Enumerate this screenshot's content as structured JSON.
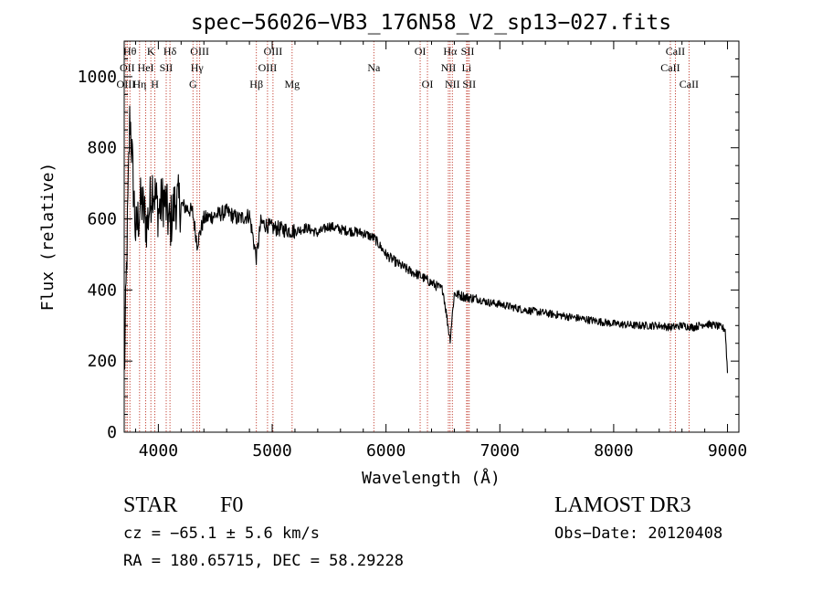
{
  "chart_data": {
    "type": "line",
    "title": "spec−56026−VB3_176N58_V2_sp13−027.fits",
    "xlabel": "Wavelength (Å)",
    "ylabel": "Flux (relative)",
    "xlim": [
      3700,
      9100
    ],
    "ylim": [
      0,
      1100
    ],
    "xticks": [
      4000,
      5000,
      6000,
      7000,
      8000,
      9000
    ],
    "yticks": [
      0,
      200,
      400,
      600,
      800,
      1000
    ],
    "x": [
      3700,
      3750,
      3800,
      3850,
      3900,
      3950,
      4000,
      4050,
      4100,
      4150,
      4200,
      4300,
      4340,
      4400,
      4500,
      4600,
      4700,
      4800,
      4861,
      4900,
      5000,
      5100,
      5200,
      5300,
      5400,
      5500,
      5600,
      5700,
      5800,
      5900,
      6000,
      6100,
      6200,
      6300,
      6400,
      6500,
      6563,
      6600,
      6700,
      6800,
      6900,
      7000,
      7200,
      7400,
      7600,
      7800,
      8000,
      8200,
      8400,
      8500,
      8600,
      8700,
      8800,
      8900,
      8980,
      9000
    ],
    "series": [
      {
        "name": "flux",
        "values": [
          150,
          900,
          560,
          650,
          580,
          700,
          620,
          660,
          580,
          650,
          640,
          620,
          530,
          600,
          610,
          620,
          600,
          610,
          490,
          590,
          575,
          570,
          565,
          575,
          560,
          580,
          570,
          565,
          560,
          545,
          500,
          475,
          455,
          440,
          420,
          400,
          260,
          390,
          380,
          375,
          365,
          360,
          345,
          335,
          325,
          315,
          305,
          300,
          300,
          295,
          300,
          295,
          305,
          300,
          290,
          170
        ]
      }
    ],
    "lines": [
      {
        "label": "Hθ",
        "x": 3750,
        "row": 0
      },
      {
        "label": "OII",
        "x": 3727,
        "row": 1
      },
      {
        "label": "OIII",
        "x": 3715,
        "row": 2
      },
      {
        "label": "K",
        "x": 3934,
        "row": 0
      },
      {
        "label": "HeI",
        "x": 3889,
        "row": 1
      },
      {
        "label": "Hη",
        "x": 3835,
        "row": 2
      },
      {
        "label": "SII",
        "x": 4069,
        "row": 1
      },
      {
        "label": "H",
        "x": 3969,
        "row": 2
      },
      {
        "label": "Hδ",
        "x": 4102,
        "row": 0
      },
      {
        "label": "OIII",
        "x": 4363,
        "row": 0
      },
      {
        "label": "Hγ",
        "x": 4340,
        "row": 1
      },
      {
        "label": "G",
        "x": 4304,
        "row": 2
      },
      {
        "label": "OIII",
        "x": 5007,
        "row": 0
      },
      {
        "label": "OIII",
        "x": 4959,
        "row": 1
      },
      {
        "label": "Hβ",
        "x": 4861,
        "row": 2
      },
      {
        "label": "Mg",
        "x": 5175,
        "row": 2
      },
      {
        "label": "Na",
        "x": 5893,
        "row": 1
      },
      {
        "label": "OI",
        "x": 6300,
        "row": 0
      },
      {
        "label": "OI",
        "x": 6364,
        "row": 2
      },
      {
        "label": "Hα",
        "x": 6563,
        "row": 0
      },
      {
        "label": "SII",
        "x": 6717,
        "row": 0
      },
      {
        "label": "NII",
        "x": 6548,
        "row": 1
      },
      {
        "label": "Li",
        "x": 6708,
        "row": 1
      },
      {
        "label": "NII",
        "x": 6583,
        "row": 2
      },
      {
        "label": "SII",
        "x": 6731,
        "row": 2
      },
      {
        "label": "CaII",
        "x": 8542,
        "row": 0
      },
      {
        "label": "CaII",
        "x": 8498,
        "row": 1
      },
      {
        "label": "CaII",
        "x": 8662,
        "row": 2
      }
    ]
  },
  "info": {
    "class": "STAR",
    "subclass": "F0",
    "survey": "LAMOST DR3",
    "cz": "cz = −65.1 ± 5.6 km/s",
    "obs_date": "Obs−Date: 20120408",
    "radec": "RA = 180.65715, DEC =  58.29228"
  }
}
